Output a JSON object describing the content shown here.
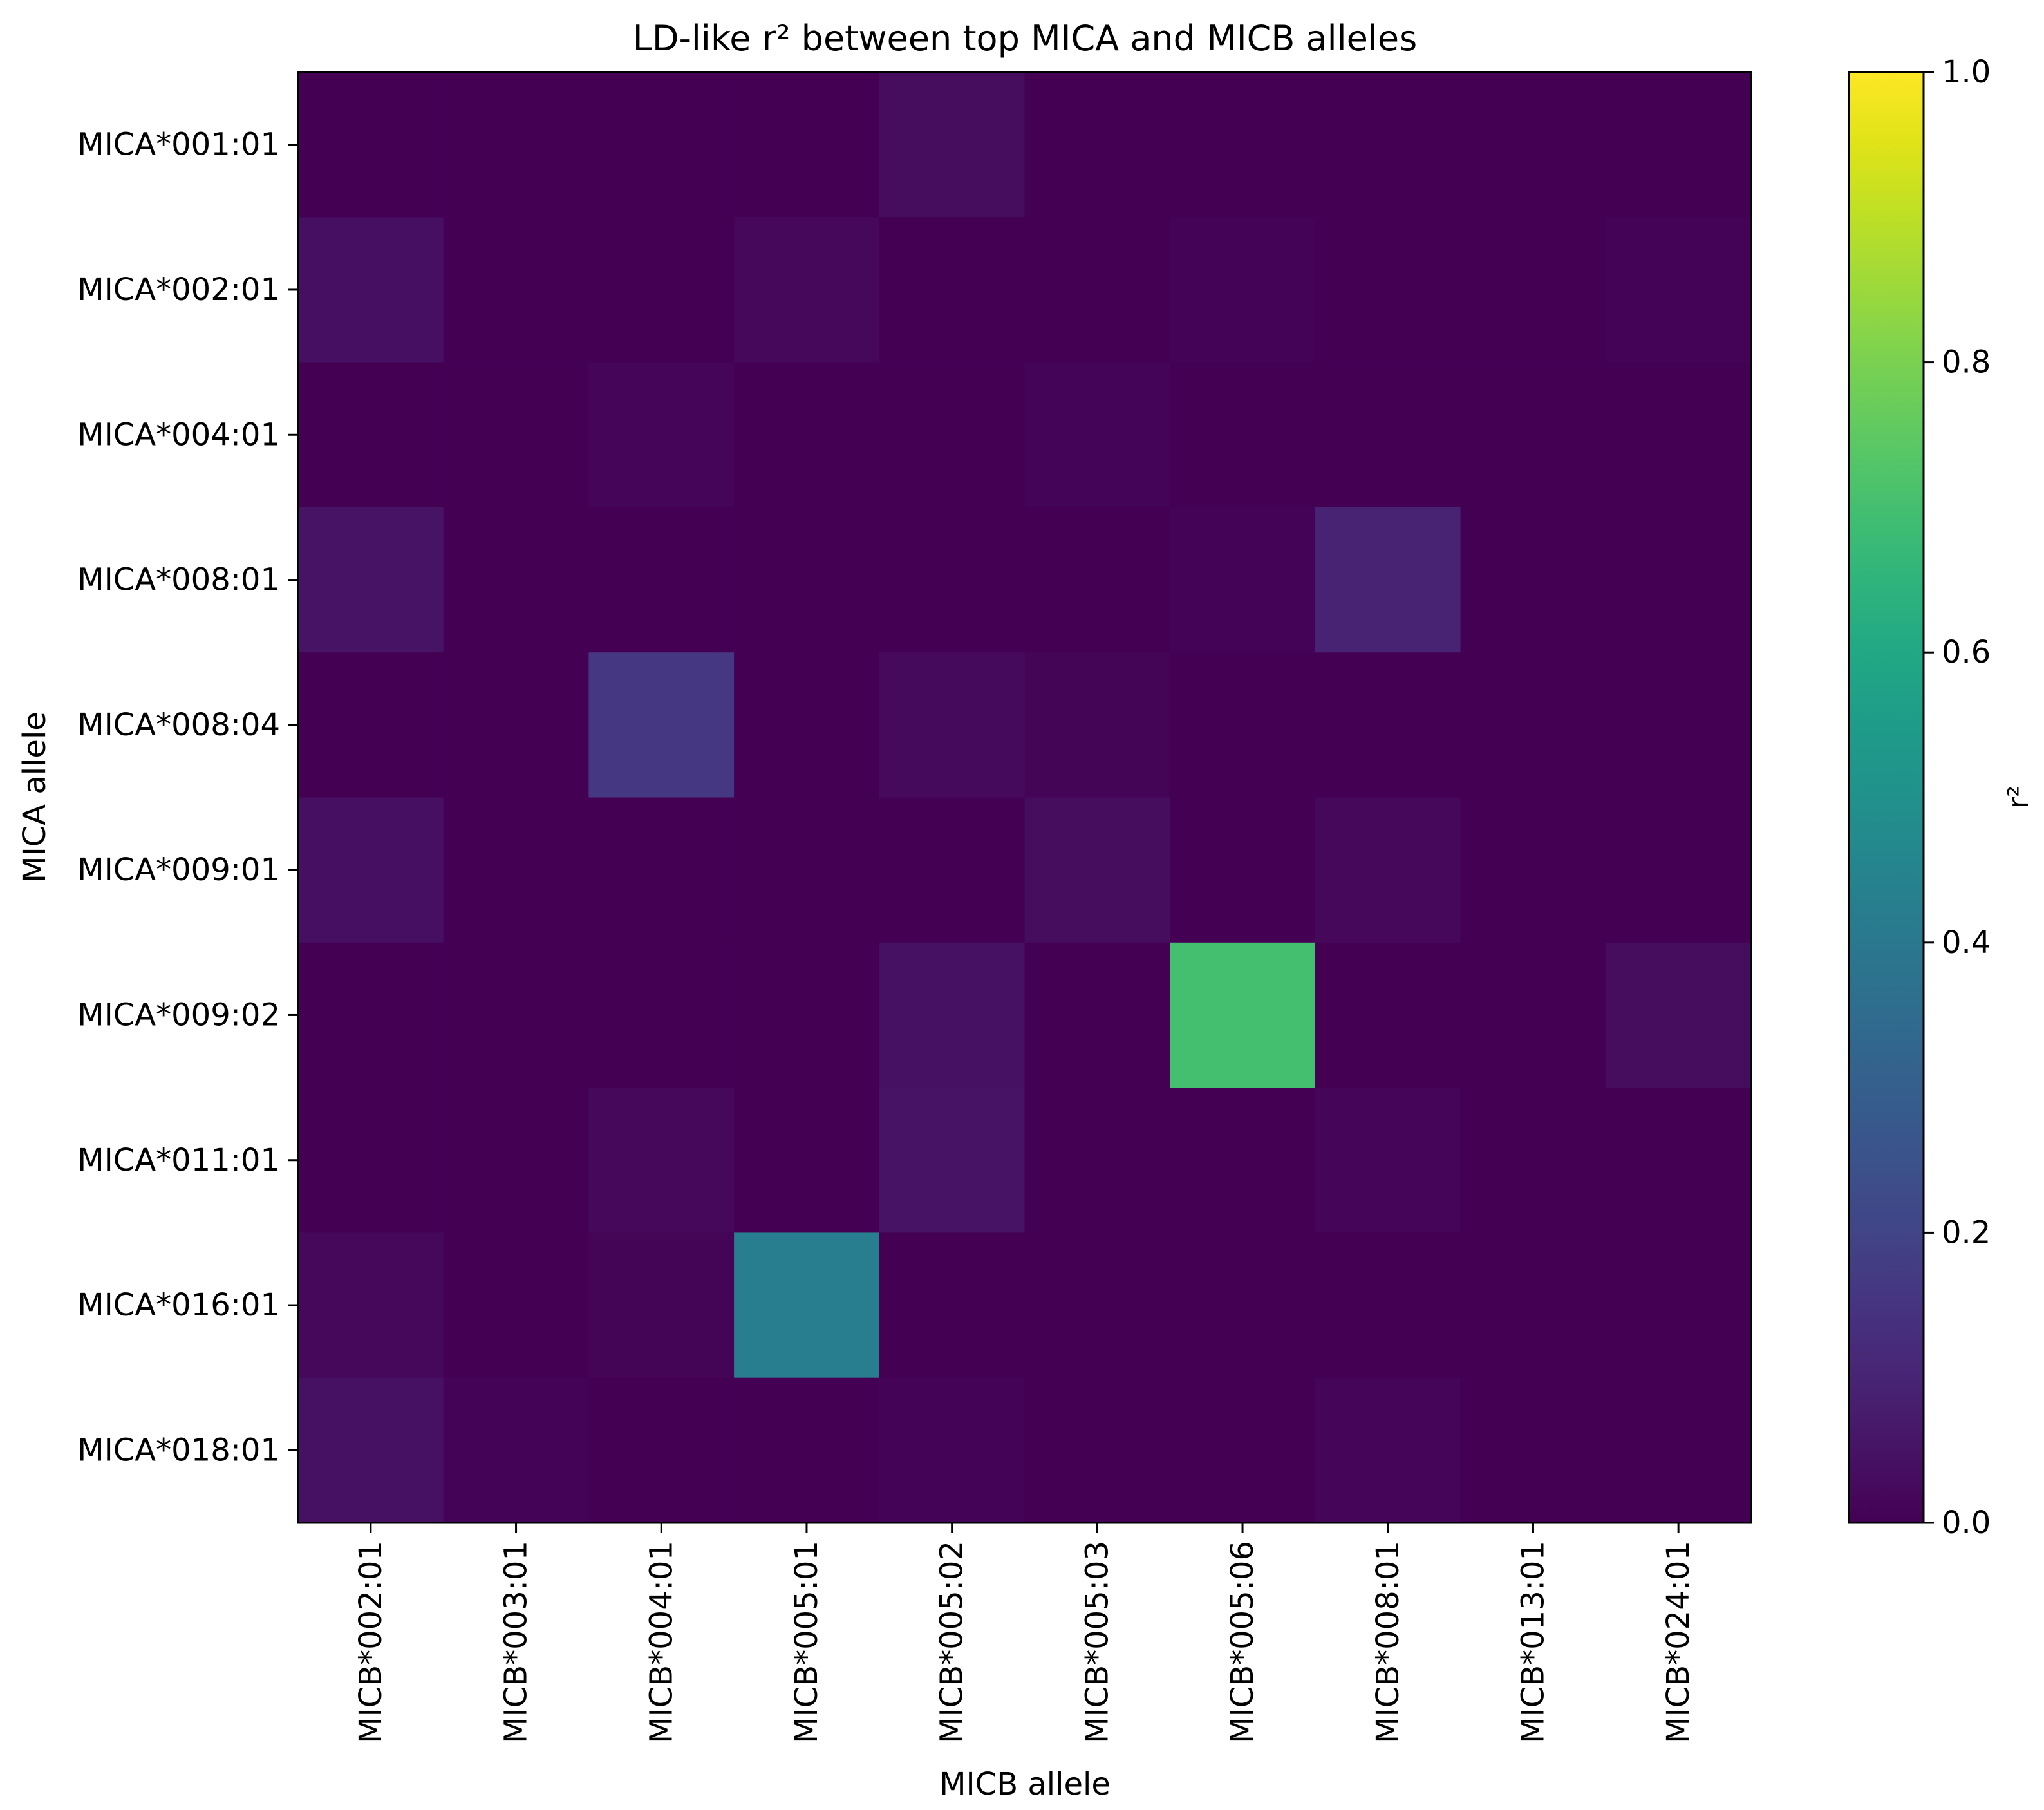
{
  "chart_data": {
    "type": "heatmap",
    "title": "LD-like r² between top MICA and MICB alleles",
    "xlabel": "MICB allele",
    "ylabel": "MICA allele",
    "x_categories": [
      "MICB*002:01",
      "MICB*003:01",
      "MICB*004:01",
      "MICB*005:01",
      "MICB*005:02",
      "MICB*005:03",
      "MICB*005:06",
      "MICB*008:01",
      "MICB*013:01",
      "MICB*024:01"
    ],
    "y_categories": [
      "MICA*001:01",
      "MICA*002:01",
      "MICA*004:01",
      "MICA*008:01",
      "MICA*008:04",
      "MICA*009:01",
      "MICA*009:02",
      "MICA*011:01",
      "MICA*016:01",
      "MICA*018:01"
    ],
    "values": [
      [
        0.0,
        0.0,
        0.0,
        0.0,
        0.03,
        0.0,
        0.0,
        0.0,
        0.0,
        0.0
      ],
      [
        0.04,
        0.0,
        0.0,
        0.02,
        0.0,
        0.0,
        0.005,
        0.0,
        0.0,
        0.005
      ],
      [
        0.0,
        0.0,
        0.015,
        0.0,
        0.0,
        0.008,
        0.0,
        0.0,
        0.0,
        0.0
      ],
      [
        0.05,
        0.0,
        0.0,
        0.0,
        0.0,
        0.0,
        0.005,
        0.095,
        0.0,
        0.0
      ],
      [
        0.0,
        0.0,
        0.16,
        0.0,
        0.025,
        0.01,
        0.0,
        0.0,
        0.0,
        0.0
      ],
      [
        0.04,
        0.0,
        0.0,
        0.0,
        0.0,
        0.03,
        0.0,
        0.02,
        0.0,
        0.0
      ],
      [
        0.0,
        0.0,
        0.0,
        0.0,
        0.045,
        0.0,
        0.7,
        0.0,
        0.0,
        0.03
      ],
      [
        0.0,
        0.0,
        0.02,
        0.0,
        0.05,
        0.0,
        0.0,
        0.012,
        0.0,
        0.0
      ],
      [
        0.02,
        0.0,
        0.01,
        0.42,
        0.0,
        0.0,
        0.0,
        0.0,
        0.0,
        0.0
      ],
      [
        0.045,
        0.005,
        0.0,
        0.0,
        0.005,
        0.0,
        0.0,
        0.012,
        0.0,
        0.0
      ]
    ],
    "colormap": "viridis",
    "vmin": 0.0,
    "vmax": 1.0,
    "colorbar": {
      "label": "r²",
      "ticks": [
        0.0,
        0.2,
        0.4,
        0.6,
        0.8,
        1.0
      ],
      "tick_labels": [
        "0.0",
        "0.2",
        "0.4",
        "0.6",
        "0.8",
        "1.0"
      ]
    },
    "grid": false
  }
}
